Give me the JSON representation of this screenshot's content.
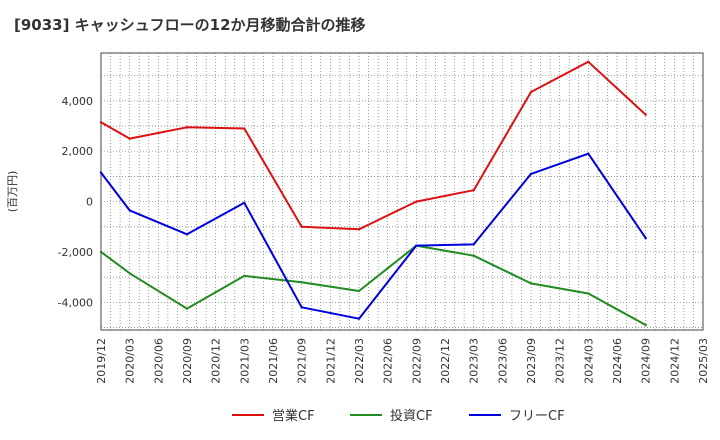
{
  "chart_data": {
    "type": "line",
    "title": "[9033]  キャッシュフローの12か月移動合計の推移",
    "xlabel": "",
    "ylabel": "(百万円)",
    "ylim": [
      -5100,
      5900
    ],
    "yticks": [
      -4000,
      -2000,
      0,
      2000,
      4000
    ],
    "ytick_labels": [
      "-4,000",
      "-2,000",
      "0",
      "2,000",
      "4,000"
    ],
    "x_ticks": [
      "2019/12",
      "2020/03",
      "2020/06",
      "2020/09",
      "2020/12",
      "2021/03",
      "2021/06",
      "2021/09",
      "2021/12",
      "2022/03",
      "2022/06",
      "2022/09",
      "2022/12",
      "2023/03",
      "2023/06",
      "2023/09",
      "2023/12",
      "2024/03",
      "2024/06",
      "2024/09",
      "2024/12",
      "2025/03"
    ],
    "grid": true,
    "legend_position": "bottom",
    "series": [
      {
        "name": "営業CF",
        "color": "#dd1111",
        "points": [
          {
            "x": "2019/12",
            "y": 3150
          },
          {
            "x": "2020/03",
            "y": 2500
          },
          {
            "x": "2020/09",
            "y": 2950
          },
          {
            "x": "2021/03",
            "y": 2900
          },
          {
            "x": "2021/09",
            "y": -1000
          },
          {
            "x": "2022/03",
            "y": -1100
          },
          {
            "x": "2022/09",
            "y": 0
          },
          {
            "x": "2023/03",
            "y": 450
          },
          {
            "x": "2023/09",
            "y": 4350
          },
          {
            "x": "2024/03",
            "y": 5550
          },
          {
            "x": "2024/09",
            "y": 3450
          }
        ]
      },
      {
        "name": "投資CF",
        "color": "#228b22",
        "points": [
          {
            "x": "2019/12",
            "y": -2000
          },
          {
            "x": "2020/03",
            "y": -2850
          },
          {
            "x": "2020/09",
            "y": -4250
          },
          {
            "x": "2021/03",
            "y": -2950
          },
          {
            "x": "2021/09",
            "y": -3200
          },
          {
            "x": "2022/03",
            "y": -3550
          },
          {
            "x": "2022/09",
            "y": -1750
          },
          {
            "x": "2023/03",
            "y": -2150
          },
          {
            "x": "2023/09",
            "y": -3250
          },
          {
            "x": "2024/03",
            "y": -3650
          },
          {
            "x": "2024/09",
            "y": -4900
          }
        ]
      },
      {
        "name": "フリーCF",
        "color": "#0000dd",
        "points": [
          {
            "x": "2019/12",
            "y": 1150
          },
          {
            "x": "2020/03",
            "y": -350
          },
          {
            "x": "2020/09",
            "y": -1300
          },
          {
            "x": "2021/03",
            "y": -50
          },
          {
            "x": "2021/09",
            "y": -4200
          },
          {
            "x": "2022/03",
            "y": -4650
          },
          {
            "x": "2022/09",
            "y": -1750
          },
          {
            "x": "2023/03",
            "y": -1700
          },
          {
            "x": "2023/09",
            "y": 1100
          },
          {
            "x": "2024/03",
            "y": 1900
          },
          {
            "x": "2024/09",
            "y": -1450
          }
        ]
      }
    ]
  }
}
